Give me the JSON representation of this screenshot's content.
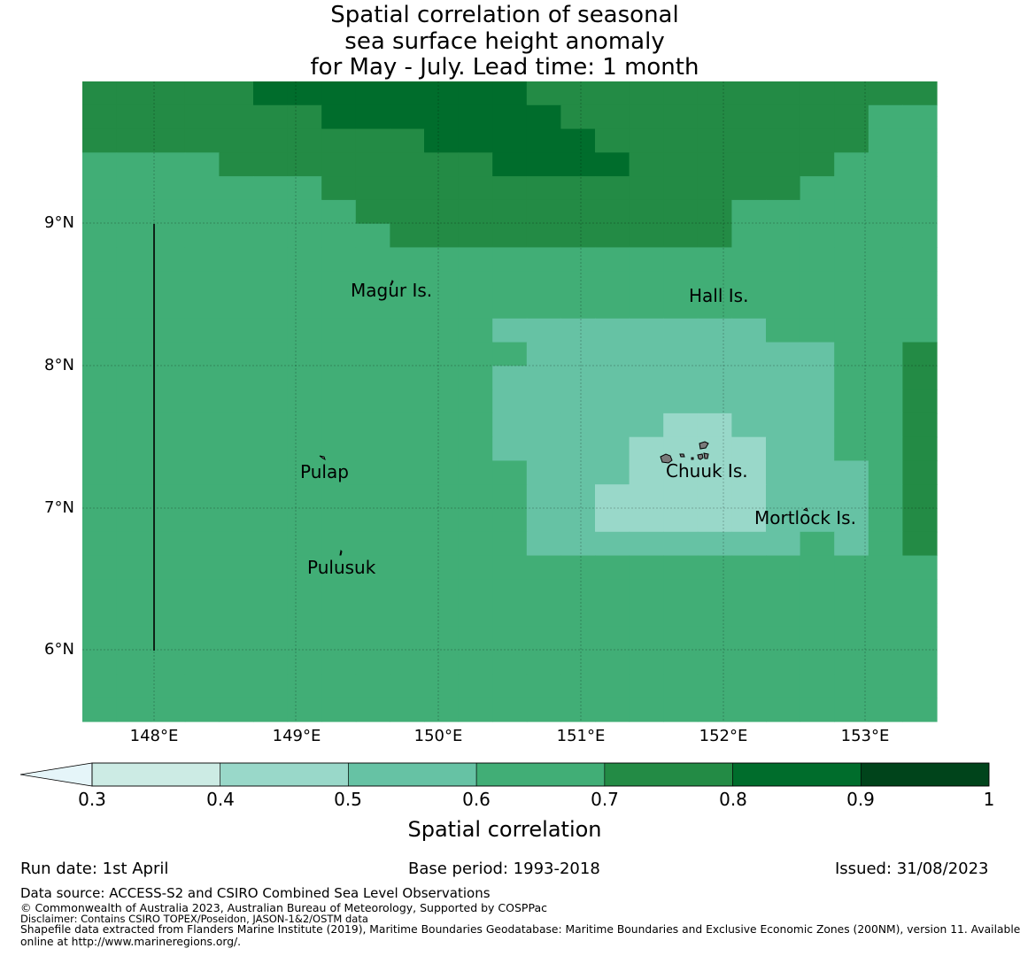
{
  "title": {
    "lines": [
      "Spatial correlation of seasonal",
      "sea surface height anomaly",
      "for May - July. Lead time: 1 month"
    ]
  },
  "map": {
    "lat_labels": [
      "9°N",
      "8°N",
      "7°N",
      "6°N"
    ],
    "lon_labels": [
      "148°E",
      "149°E",
      "150°E",
      "151°E",
      "152°E",
      "153°E"
    ],
    "places": [
      "Magur Is.",
      "Hall Is.",
      "Pulap",
      "Chuuk Is.",
      "Mortlock Is.",
      "Pulusuk"
    ],
    "grid_rows": [
      "5555566666666555555555555",
      "5555555666666655555555544",
      "5555555555666665555555544",
      "4444555555556666555555444",
      "4444444555555555555554444",
      "4444444455555555555444444",
      "4444444445555555555444444",
      "4444444444444444444444444",
      "4444444444444444444444444",
      "4444444444444444444444444",
      "4444444444443333333344444",
      "4444444444444333333333445",
      "4444444444443333333333445",
      "4444444444443333333333445",
      "4444444444443333322333445",
      "4444444444443333222233445",
      "4444444444444333222233345",
      "4444444444444332222233345",
      "4444444444444332222233345",
      "4444444444444333333334345",
      "4444444444444444444444444",
      "4444444444444444444444444",
      "4444444444444444444444444",
      "4444444444444444444444444",
      "4444444444444444444444444",
      "4444444444444444444444444",
      "4444444444444444444444444"
    ]
  },
  "colorbar": {
    "label": "Spatial correlation",
    "ticks": [
      "0.3",
      "0.4",
      "0.5",
      "0.6",
      "0.7",
      "0.8",
      "0.9",
      "1"
    ],
    "colors": [
      "#ccebe4",
      "#99d8c9",
      "#66c2a4",
      "#41ae76",
      "#238b45",
      "#006d2c",
      "#00441b"
    ],
    "extend_color": "#e5f5f9"
  },
  "footer": {
    "run_date": "Run date: 1st April",
    "base_period": "Base period: 1993-2018",
    "issued": "Issued: 31/08/2023",
    "data_source": "Data source: ACCESS-S2 and CSIRO Combined Sea Level Observations",
    "copyright": "© Commonwealth of Australia 2023, Australian Bureau of Meteorology, Supported by COSPPac",
    "disclaimer": "Disclaimer: Contains CSIRO TOPEX/Poseidon, JASON-1&2/OSTM data",
    "shapefile_1": "Shapefile data extracted from Flanders Marine Institute (2019), Maritime Boundaries Geodatabase: Maritime Boundaries and Exclusive Economic Zones (200NM), version 11. Available",
    "shapefile_2": "online at http://www.marineregions.org/."
  }
}
